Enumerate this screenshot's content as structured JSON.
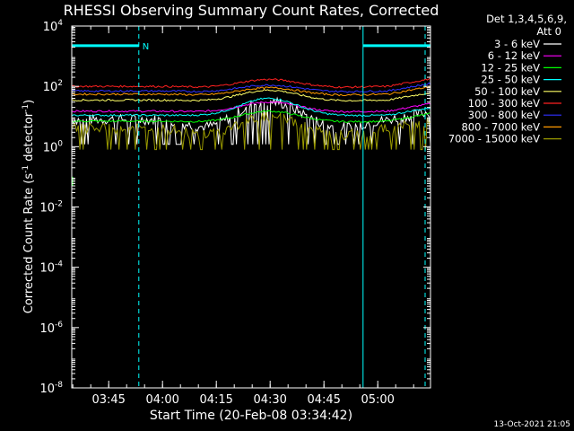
{
  "chart_data": {
    "type": "line",
    "title": "RHESSI Observing Summary Count Rates, Corrected",
    "xlabel": "Start Time (20-Feb-08 03:34:42)",
    "ylabel_prefix": "Corrected Count Rate (s",
    "ylabel_mid": " detector",
    "ylabel_suffix": ")",
    "ylabel_exp": "-1",
    "yscale": "log",
    "ylim_exp": [
      -8,
      4
    ],
    "y_ticks": [
      {
        "base": "10",
        "exp": "4",
        "e": 4
      },
      {
        "base": "10",
        "exp": "2",
        "e": 2
      },
      {
        "base": "10",
        "exp": "0",
        "e": 0
      },
      {
        "base": "10",
        "exp": "-2",
        "e": -2
      },
      {
        "base": "10",
        "exp": "-4",
        "e": -4
      },
      {
        "base": "10",
        "exp": "-6",
        "e": -6
      },
      {
        "base": "10",
        "exp": "-8",
        "e": -8
      }
    ],
    "x_range_min": [
      0,
      100
    ],
    "x_ticks": [
      {
        "label": "03:45",
        "t": 10.3
      },
      {
        "label": "04:00",
        "t": 25.3
      },
      {
        "label": "04:15",
        "t": 40.3
      },
      {
        "label": "04:30",
        "t": 55.3
      },
      {
        "label": "04:45",
        "t": 70.3
      },
      {
        "label": "05:00",
        "t": 85.3
      }
    ],
    "legend_title_1": "Det 1,3,4,5,6,9,",
    "legend_title_2": "Att 0",
    "series": [
      {
        "name": "3 - 6 keV",
        "color": "#ffffff",
        "base": 8,
        "peak": 32,
        "min": 1.2
      },
      {
        "name": "6 - 12 keV",
        "color": "#ff00ff",
        "base": 15,
        "peak": 30,
        "min": 13
      },
      {
        "name": "12 - 25 keV",
        "color": "#00ff00",
        "base": 7,
        "peak": 15,
        "min": 6
      },
      {
        "name": "25 - 50 keV",
        "color": "#00ffff",
        "base": 11,
        "peak": 40,
        "min": 10
      },
      {
        "name": "50 - 100 keV",
        "color": "#ffff66",
        "base": 35,
        "peak": 75,
        "min": 30
      },
      {
        "name": "100 - 300 keV",
        "color": "#ff2020",
        "base": 100,
        "peak": 170,
        "min": 80
      },
      {
        "name": "300 - 800 keV",
        "color": "#3030ff",
        "base": 70,
        "peak": 110,
        "min": 60
      },
      {
        "name": "800 - 7000 keV",
        "color": "#ff9a00",
        "base": 55,
        "peak": 90,
        "min": 45
      },
      {
        "name": "7000 - 15000 keV",
        "color": "#999900",
        "base": 4,
        "peak": 10,
        "min": 0.8
      }
    ],
    "flags": {
      "n_label": "N",
      "night_intervals_min": [
        [
          0,
          18.7
        ],
        [
          81.2,
          100
        ]
      ],
      "dashed_lines_min": [
        18.7,
        98.5
      ],
      "solid_lines_min": [
        81.2
      ]
    },
    "timestamp": "13-Oct-2021 21:05"
  },
  "colors": {
    "background": "#000000",
    "axes": "#ffffff",
    "flag": "#00ffff"
  }
}
